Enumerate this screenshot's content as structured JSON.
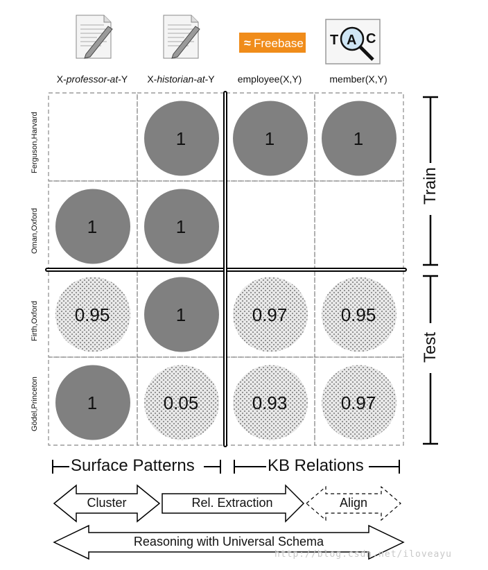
{
  "columns": [
    {
      "prefix": "X-",
      "italic": "professor-at",
      "suffix": "-Y",
      "icon": "document-icon"
    },
    {
      "prefix": "X-",
      "italic": "historian-at",
      "suffix": "-Y",
      "icon": "document-icon"
    },
    {
      "prefix": "employee(X,Y)",
      "italic": "",
      "suffix": "",
      "icon": "freebase-logo",
      "logo_text": "Freebase"
    },
    {
      "prefix": "member(X,Y)",
      "italic": "",
      "suffix": "",
      "icon": "tac-logo",
      "logo_letters": [
        "T",
        "A",
        "C"
      ]
    }
  ],
  "rows": [
    "Ferguson,Harvard",
    "Oman,Oxford",
    "Firth,Oxford",
    "Gödel,Princeton"
  ],
  "cells": [
    [
      "",
      "1",
      "1",
      "1"
    ],
    [
      "1",
      "1",
      "",
      ""
    ],
    [
      "0.95",
      "1",
      "0.97",
      "0.95"
    ],
    [
      "1",
      "0.05",
      "0.93",
      "0.97"
    ]
  ],
  "cell_kind_legend": {
    "solid": "#808080",
    "dotted": "#9a9a9a"
  },
  "side_labels": {
    "train": "Train",
    "test": "Test"
  },
  "sections": {
    "surface": "Surface Patterns",
    "kb": "KB Relations"
  },
  "arrows": {
    "cluster": "Cluster",
    "extraction": "Rel. Extraction",
    "align": "Align",
    "reasoning": "Reasoning with Universal Schema"
  },
  "watermark": "http://blog.csdn.net/iloveayu"
}
